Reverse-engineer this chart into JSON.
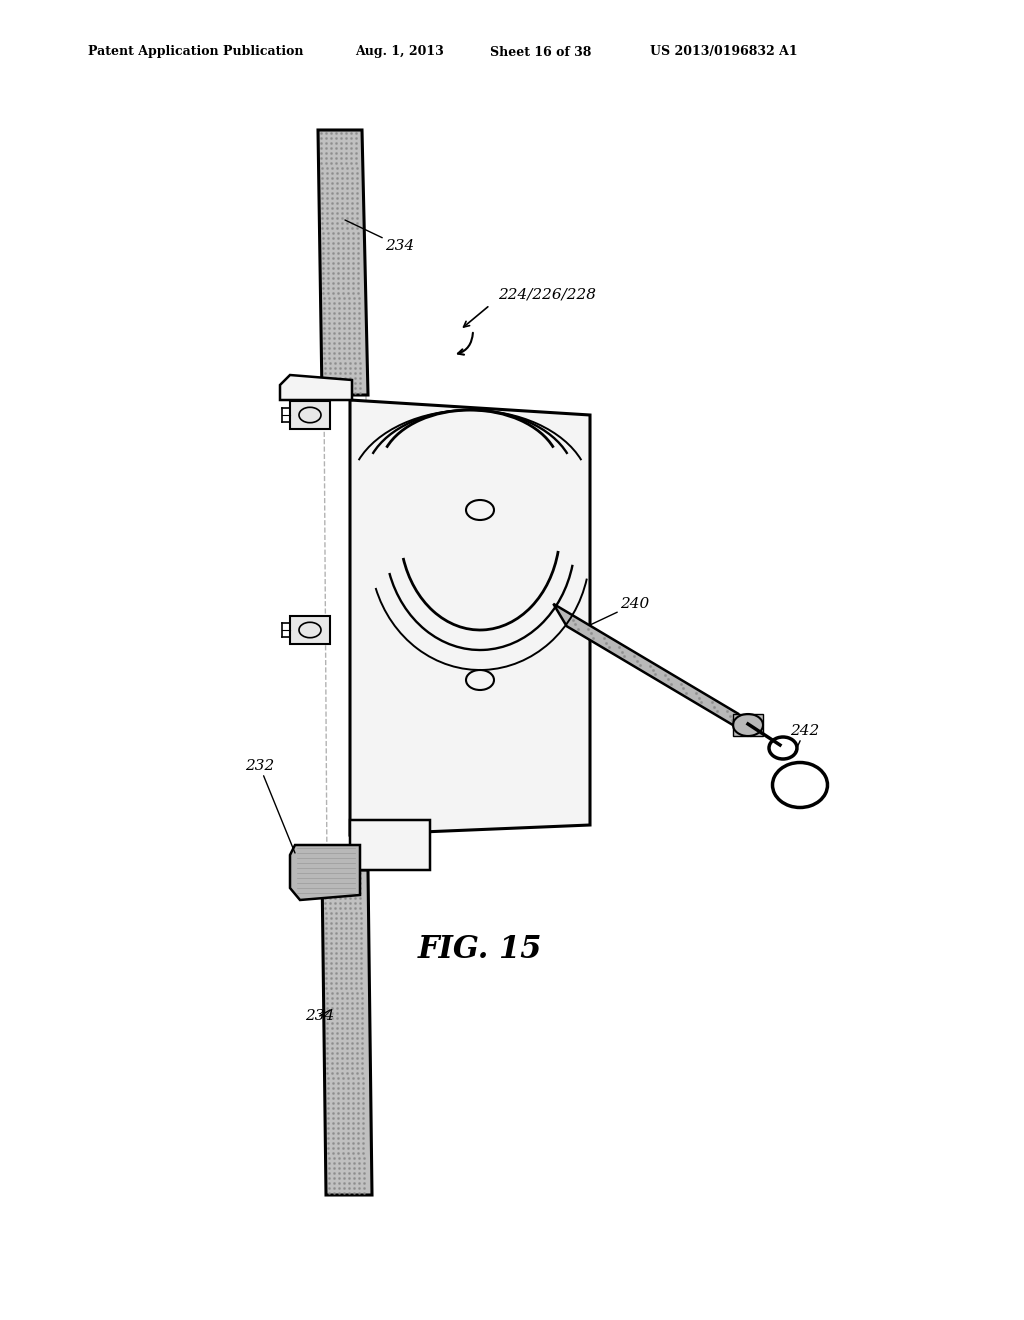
{
  "background_color": "#ffffff",
  "header": {
    "col1": "Patent Application Publication",
    "col2": "Aug. 1, 2013",
    "col3": "Sheet 16 of 38",
    "col4": "US 2013/0196832 A1"
  },
  "fig_label": "FIG. 15",
  "label_234_top": "234",
  "label_224": "224/226/228",
  "label_240": "240",
  "label_242": "242",
  "label_232": "232",
  "label_234_bot": "234",
  "rail_color": "#c0c0c0",
  "rail_stipple": "#888888",
  "plate_color": "#f4f4f4",
  "arm_color": "#b8b8b8",
  "tube_color": "#d0d0d0",
  "line_color": "#000000",
  "lw_main": 1.8,
  "lw_thick": 2.2
}
